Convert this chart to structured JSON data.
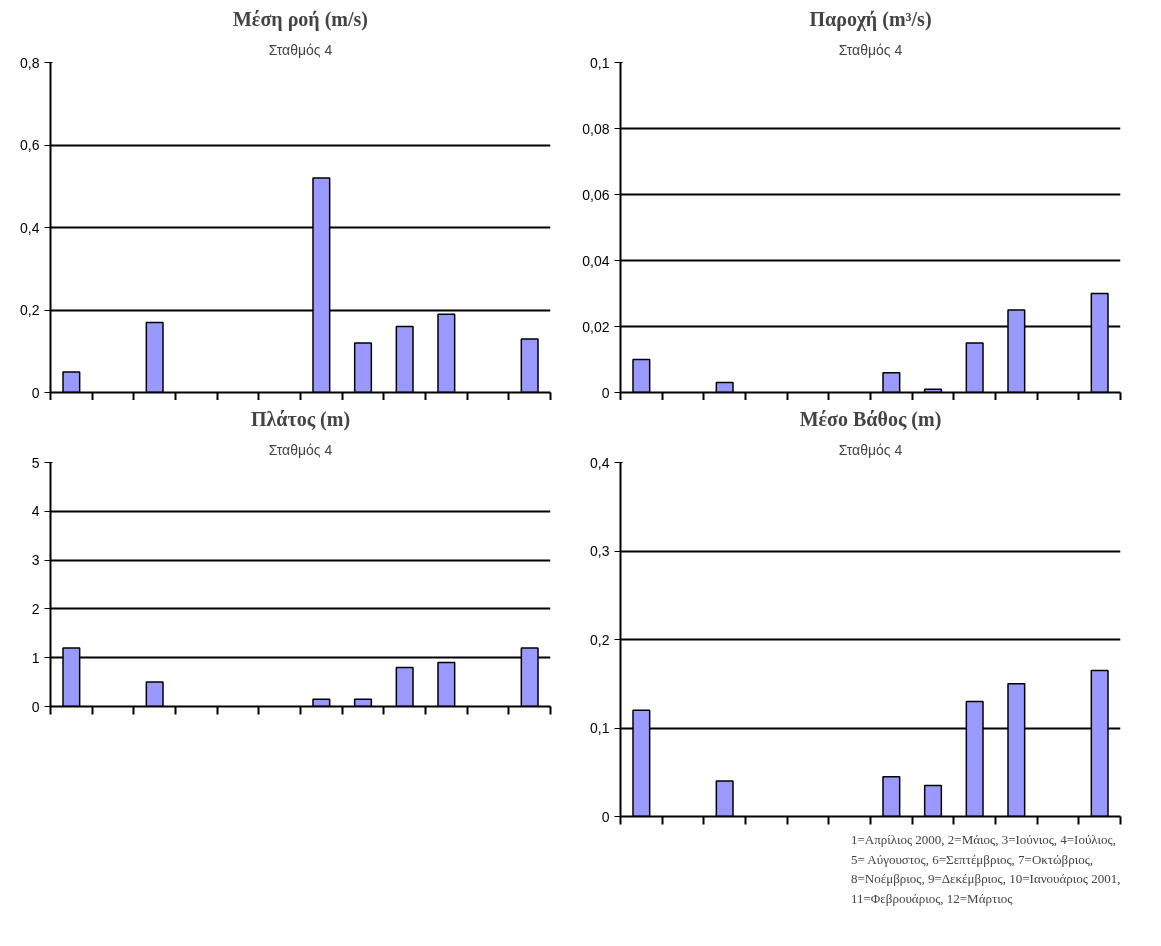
{
  "chart_data": [
    {
      "type": "bar",
      "title": "Μέση ροή (m/s)",
      "subtitle": "Σταθμός 4",
      "categories": [
        null,
        null,
        null,
        null,
        null,
        null,
        null,
        null,
        null,
        null,
        null,
        null
      ],
      "color": "#9999ff",
      "values": [
        0.05,
        null,
        0.17,
        null,
        null,
        null,
        0.52,
        0.12,
        0.16,
        0.19,
        null,
        0.13
      ],
      "ylim": [
        0,
        0.8
      ],
      "yticks": [
        0,
        {
          "value": 0.2,
          "label": "0,2"
        },
        {
          "value": 0.4,
          "label": "0,4"
        },
        {
          "value": 0.6,
          "label": "0,6"
        },
        {
          "value": 0.8,
          "label": "0,8"
        }
      ],
      "grid": "y"
    },
    {
      "type": "bar",
      "title": "Παροχή (m³/s)",
      "subtitle": "Σταθμός 4",
      "categories": [
        null,
        null,
        null,
        null,
        null,
        null,
        null,
        null,
        null,
        null,
        null,
        null
      ],
      "color": "#9999ff",
      "values": [
        0.01,
        null,
        0.003,
        null,
        null,
        null,
        0.006,
        0.001,
        0.015,
        0.025,
        null,
        0.03
      ],
      "ylim": [
        0,
        0.1
      ],
      "yticks": [
        0,
        {
          "value": 0.02,
          "label": "0,02"
        },
        {
          "value": 0.04,
          "label": "0,04"
        },
        {
          "value": 0.06,
          "label": "0,06"
        },
        {
          "value": 0.08,
          "label": "0,08"
        },
        {
          "value": 0.1,
          "label": "0,1"
        }
      ],
      "grid": "y"
    },
    {
      "type": "bar",
      "title": "Πλάτος (m)",
      "subtitle": "Σταθμός 4",
      "categories": [
        null,
        null,
        null,
        null,
        null,
        null,
        null,
        null,
        null,
        null,
        null,
        null
      ],
      "color": "#9999ff",
      "values": [
        1.2,
        null,
        0.5,
        null,
        null,
        null,
        0.15,
        0.15,
        0.8,
        0.9,
        null,
        1.2
      ],
      "ylim": [
        0,
        5
      ],
      "yticks": [
        0,
        1,
        2,
        3,
        4,
        5
      ],
      "grid": "y"
    },
    {
      "type": "bar",
      "title": "Μέσο Βάθος (m)",
      "subtitle": "Σταθμός 4",
      "categories": [
        null,
        null,
        null,
        null,
        null,
        null,
        null,
        null,
        null,
        null,
        null,
        null
      ],
      "color": "#9999ff",
      "values": [
        0.12,
        null,
        0.04,
        null,
        null,
        null,
        0.045,
        0.035,
        0.13,
        0.15,
        null,
        0.165
      ],
      "ylim": [
        0,
        0.4
      ],
      "yticks": [
        0,
        {
          "value": 0.1,
          "label": "0,1"
        },
        {
          "value": 0.2,
          "label": "0,2"
        },
        {
          "value": 0.3,
          "label": "0,3"
        },
        {
          "value": 0.4,
          "label": "0,4"
        }
      ],
      "grid": "y",
      "annotations": [
        "1=Απρίλιος 2000, 2=Μάιος, 3=Ιούνιος, 4=Ιούλιος,\n5= Αύγουστος, 6=Σεπτέμβριος, 7=Οκτώβριος,\n8=Νοέμβριος, 9=Δεκέμβριος, 10=Ιανουάριος 2001,\n11=Φεβρουάριος, 12=Μάρτιος"
      ]
    }
  ]
}
